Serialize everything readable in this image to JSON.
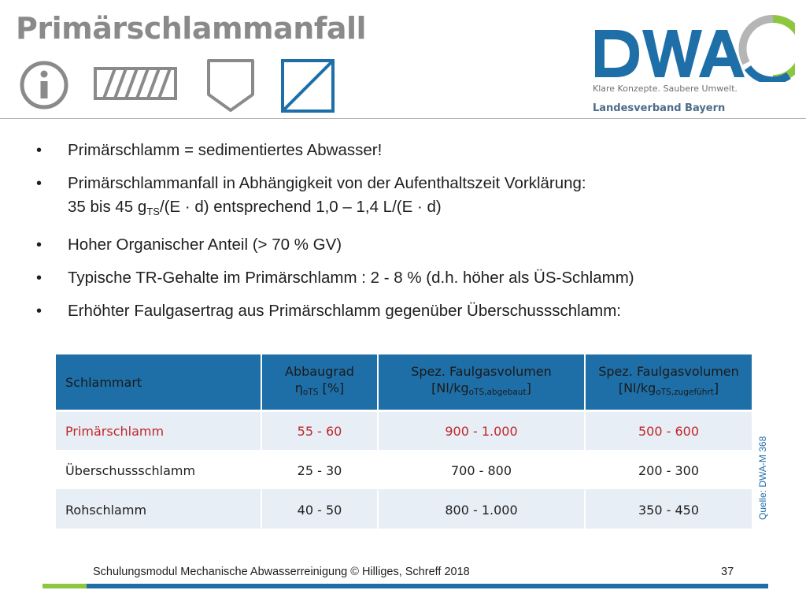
{
  "header": {
    "title": "Primärschlammanfall",
    "icons": [
      "info-icon",
      "hatched-rectangle-icon",
      "shield-shape-icon",
      "diagonal-square-icon"
    ]
  },
  "logo": {
    "wordmark": "DWA",
    "tagline": "Klare Konzepte. Saubere Umwelt.",
    "region": "Landesverband Bayern",
    "colors": {
      "blue": "#1e6fa8",
      "green": "#8dc63f",
      "grey": "#b5b5b5"
    }
  },
  "bullets": {
    "b1": "Primärschlamm = sedimentiertes Abwasser!",
    "b2_line1": "Primärschlammanfall in Abhängigkeit von der Aufenthaltszeit Vorklärung:",
    "b2_line2_a": "35 bis 45 g",
    "b2_line2_sub": "TS",
    "b2_line2_b": "/(E · d) entsprechend 1,0 – 1,4 L/(E · d)",
    "b3": "Hoher Organischer Anteil (> 70 % GV)",
    "b4": "Typische TR-Gehalte im Primärschlamm : 2 - 8 % (d.h. höher als ÜS-Schlamm)",
    "b5": "Erhöhter Faulgasertrag aus Primärschlamm gegenüber Überschussschlamm:"
  },
  "table": {
    "headers": {
      "c1": "Schlammart",
      "c2_line1": "Abbaugrad",
      "c2_line2": "η",
      "c2_sub": "oTS",
      "c2_line2_end": " [%]",
      "c3_line1": "Spez. Faulgasvolumen",
      "c3_line2": "[Nl/kg",
      "c3_sub": "oTS,abgebaut",
      "c3_end": "]",
      "c4_line1": "Spez. Faulgasvolumen",
      "c4_line2": "[Nl/kg",
      "c4_sub": "oTS,zugeführt",
      "c4_end": "]"
    },
    "rows": [
      {
        "type": "Primärschlamm",
        "abbaugrad": "55 - 60",
        "abgebaut": "900 - 1.000",
        "zugefuehrt": "500 - 600",
        "color": "#c0262a"
      },
      {
        "type": "Überschussschlamm",
        "abbaugrad": "25 - 30",
        "abgebaut": "700 - 800",
        "zugefuehrt": "200 - 300"
      },
      {
        "type": "Rohschlamm",
        "abbaugrad": "40 - 50",
        "abgebaut": "800 - 1.000",
        "zugefuehrt": "350 - 450"
      }
    ]
  },
  "source": "Quelle: DWA-M 368",
  "footer": {
    "text": "Schulungsmodul Mechanische Abwasserreinigung © Hilliges, Schreff  2018",
    "page": "37"
  }
}
